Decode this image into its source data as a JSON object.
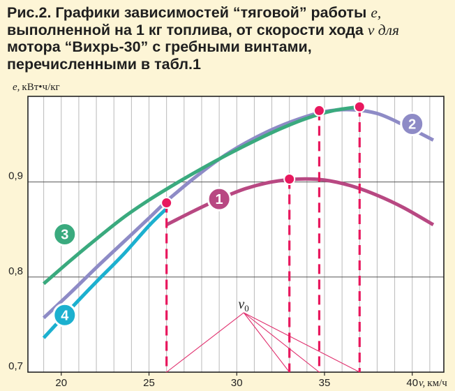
{
  "figure": {
    "title_lines": [
      "Рис.2. Графики зависимостей “тяговой” работы ",
      "выполненной на 1 кг топлива, от скорости хода ",
      "мотора “Вихрь-30” с гребными винтами,",
      "перечисленными в табл.1"
    ],
    "title_var_e": "e,",
    "title_var_v": "v для"
  },
  "chart_data": {
    "type": "line",
    "title": "Рис.2. Графики зависимостей “тяговой” работы e, выполненной на 1 кг топлива, от скорости хода v для мотора “Вихрь-30” с гребными винтами, перечисленными в табл.1",
    "xlabel_var": "v,",
    "xlabel_unit": "км/ч",
    "ylabel_var": "e,",
    "ylabel_unit": "кВт•ч/кг",
    "xlim": [
      18.1,
      41.8
    ],
    "ylim": [
      0.7,
      0.99
    ],
    "x_ticks": [
      20,
      25,
      30,
      35,
      40
    ],
    "x_tick_labels": [
      "20",
      "25",
      "30",
      "35",
      "40"
    ],
    "y_ticks": [
      0.7,
      0.8,
      0.9
    ],
    "y_tick_labels": [
      "0,7",
      "0,8",
      "0,9"
    ],
    "minor_x_step": 1,
    "grid": true,
    "series": [
      {
        "name": "1",
        "color": "#b84882",
        "x": [
          26.0,
          27.5,
          29.0,
          30.5,
          32.0,
          33.5,
          35.0,
          36.5,
          38.0,
          39.5,
          41.2
        ],
        "y": [
          0.855,
          0.869,
          0.882,
          0.893,
          0.9,
          0.903,
          0.902,
          0.896,
          0.886,
          0.873,
          0.855
        ],
        "label_at": [
          29.0,
          0.882
        ]
      },
      {
        "name": "2",
        "color": "#8e8bc6",
        "x": [
          26.0,
          27.5,
          29.0,
          30.5,
          32.0,
          33.5,
          35.0,
          36.5,
          38.0,
          39.5,
          41.2
        ],
        "y": [
          0.88,
          0.903,
          0.924,
          0.941,
          0.955,
          0.966,
          0.974,
          0.976,
          0.972,
          0.96,
          0.944
        ],
        "label_at": [
          40.0,
          0.961
        ]
      },
      {
        "name": "3",
        "color": "#3aaa7e",
        "x": [
          19.0,
          20.5,
          22.0,
          23.5,
          25.0,
          26.5,
          28.0,
          29.5,
          31.0,
          32.5,
          34.0,
          35.5,
          37.0
        ],
        "y": [
          0.793,
          0.817,
          0.84,
          0.862,
          0.881,
          0.898,
          0.914,
          0.929,
          0.943,
          0.956,
          0.967,
          0.975,
          0.979
        ],
        "label_at": [
          20.2,
          0.845
        ]
      },
      {
        "name": "4",
        "color": "#1cb0cf",
        "x": [
          19.0,
          20.5,
          22.0,
          23.5,
          25.0,
          26.0
        ],
        "y": [
          0.736,
          0.766,
          0.795,
          0.823,
          0.854,
          0.872
        ],
        "label_at": [
          20.2,
          0.76
        ]
      },
      {
        "name": "2 (lower branch)",
        "color": "#8e8bc6",
        "x": [
          19.0,
          20.5,
          22.0,
          23.5,
          25.0,
          26.0
        ],
        "y": [
          0.757,
          0.783,
          0.81,
          0.836,
          0.862,
          0.88
        ]
      }
    ],
    "optimum_points": [
      {
        "x": 26.0,
        "y": 0.878
      },
      {
        "x": 33.0,
        "y": 0.903
      },
      {
        "x": 34.7,
        "y": 0.975
      },
      {
        "x": 37.0,
        "y": 0.979
      }
    ],
    "construction": {
      "label": "v",
      "label_sub": "0",
      "apex": [
        30.4,
        0.7625
      ],
      "rays_to_x": [
        26.0,
        33.0,
        34.7,
        37.0
      ]
    },
    "marker_color": "#e8185e",
    "dashed_color": "#e8185e"
  }
}
